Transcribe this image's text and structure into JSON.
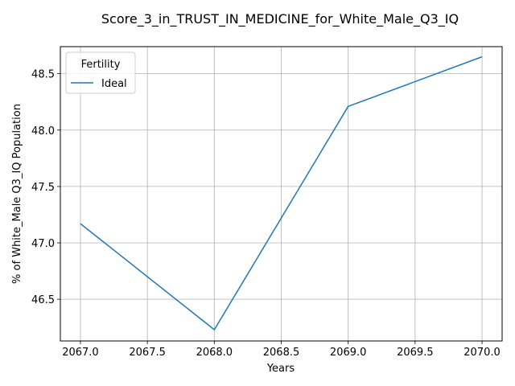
{
  "chart_data": {
    "type": "line",
    "title": "Score_3_in_TRUST_IN_MEDICINE_for_White_Male_Q3_IQ",
    "xlabel": "Years",
    "ylabel": "% of White_Male Q3_IQ Population",
    "x": [
      2067,
      2068,
      2069,
      2070
    ],
    "series": [
      {
        "name": "Ideal",
        "values": [
          47.17,
          46.23,
          48.21,
          48.65
        ],
        "color": "#1f77b4"
      }
    ],
    "xlim": [
      2066.85,
      2070.15
    ],
    "ylim": [
      46.13,
      48.74
    ],
    "xticks": [
      2067.0,
      2067.5,
      2068.0,
      2068.5,
      2069.0,
      2069.5,
      2070.0
    ],
    "xtick_labels": [
      "2067.0",
      "2067.5",
      "2068.0",
      "2068.5",
      "2069.0",
      "2069.5",
      "2070.0"
    ],
    "yticks": [
      46.5,
      47.0,
      47.5,
      48.0,
      48.5
    ],
    "ytick_labels": [
      "46.5",
      "47.0",
      "47.5",
      "48.0",
      "48.5"
    ],
    "grid": true,
    "legend": {
      "title": "Fertility",
      "placement": "top-left"
    }
  }
}
